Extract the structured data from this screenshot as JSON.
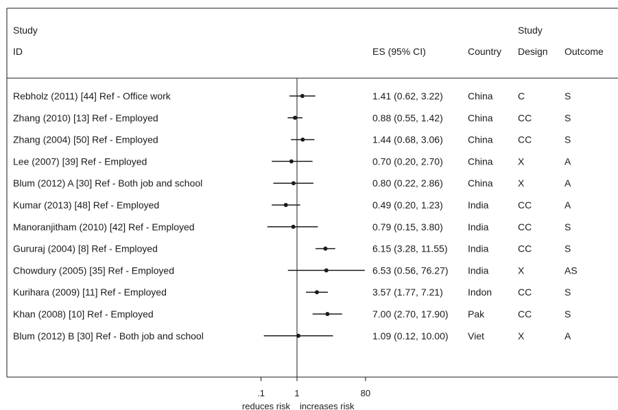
{
  "chart_data": {
    "type": "forest",
    "columns": {
      "study_header": [
        "Study",
        "ID"
      ],
      "es_header": "ES (95% CI)",
      "country_header": "Country",
      "design_header": [
        "Study",
        "Design"
      ],
      "outcome_header": "Outcome"
    },
    "rows": [
      {
        "study": "Rebholz (2011) [44] Ref - Office work",
        "es": 1.41,
        "lo": 0.62,
        "hi": 3.22,
        "es_text": "1.41 (0.62, 3.22)",
        "country": "China",
        "design": "C",
        "outcome": "S"
      },
      {
        "study": "Zhang (2010) [13] Ref - Employed",
        "es": 0.88,
        "lo": 0.55,
        "hi": 1.42,
        "es_text": "0.88 (0.55, 1.42)",
        "country": "China",
        "design": "CC",
        "outcome": "S"
      },
      {
        "study": "Zhang (2004) [50] Ref - Employed",
        "es": 1.44,
        "lo": 0.68,
        "hi": 3.06,
        "es_text": "1.44 (0.68, 3.06)",
        "country": "China",
        "design": "CC",
        "outcome": "S"
      },
      {
        "study": "Lee (2007) [39] Ref - Employed",
        "es": 0.7,
        "lo": 0.2,
        "hi": 2.7,
        "es_text": "0.70 (0.20, 2.70)",
        "country": "China",
        "design": "X",
        "outcome": "A"
      },
      {
        "study": "Blum (2012) A [30] Ref - Both job and school",
        "es": 0.8,
        "lo": 0.22,
        "hi": 2.86,
        "es_text": "0.80 (0.22, 2.86)",
        "country": "China",
        "design": "X",
        "outcome": "A"
      },
      {
        "study": "Kumar (2013) [48] Ref - Employed",
        "es": 0.49,
        "lo": 0.2,
        "hi": 1.23,
        "es_text": "0.49 (0.20, 1.23)",
        "country": "India",
        "design": "CC",
        "outcome": "A"
      },
      {
        "study": "Manoranjitham (2010) [42] Ref - Employed",
        "es": 0.79,
        "lo": 0.15,
        "hi": 3.8,
        "es_text": "0.79 (0.15, 3.80)",
        "country": "India",
        "design": "CC",
        "outcome": "S"
      },
      {
        "study": "Gururaj (2004) [8] Ref - Employed",
        "es": 6.15,
        "lo": 3.28,
        "hi": 11.55,
        "es_text": "6.15 (3.28, 11.55)",
        "country": "India",
        "design": "CC",
        "outcome": "S"
      },
      {
        "study": "Chowdury (2005) [35] Ref - Employed",
        "es": 6.53,
        "lo": 0.56,
        "hi": 76.27,
        "es_text": "6.53 (0.56, 76.27)",
        "country": "India",
        "design": "X",
        "outcome": "AS"
      },
      {
        "study": "Kurihara (2009) [11] Ref - Employed",
        "es": 3.57,
        "lo": 1.77,
        "hi": 7.21,
        "es_text": "3.57 (1.77, 7.21)",
        "country": "Indon",
        "design": "CC",
        "outcome": "S"
      },
      {
        "study": "Khan (2008) [10] Ref - Employed",
        "es": 7.0,
        "lo": 2.7,
        "hi": 17.9,
        "es_text": "7.00 (2.70, 17.90)",
        "country": "Pak",
        "design": "CC",
        "outcome": "S"
      },
      {
        "study": "Blum (2012) B [30] Ref - Both job and school",
        "es": 1.09,
        "lo": 0.12,
        "hi": 10.0,
        "es_text": "1.09 (0.12, 10.00)",
        "country": "Viet",
        "design": "X",
        "outcome": "A"
      }
    ],
    "x_axis": {
      "scale": "log",
      "ticks": [
        0.1,
        1,
        80
      ],
      "tick_labels": [
        ".1",
        "1",
        "80"
      ],
      "xlim": [
        0.1,
        80
      ],
      "null_line": 1,
      "left_label": "reduces risk",
      "right_label": "increases risk"
    },
    "colors": {
      "ink": "#1a1a1a",
      "background": "#ffffff"
    }
  }
}
